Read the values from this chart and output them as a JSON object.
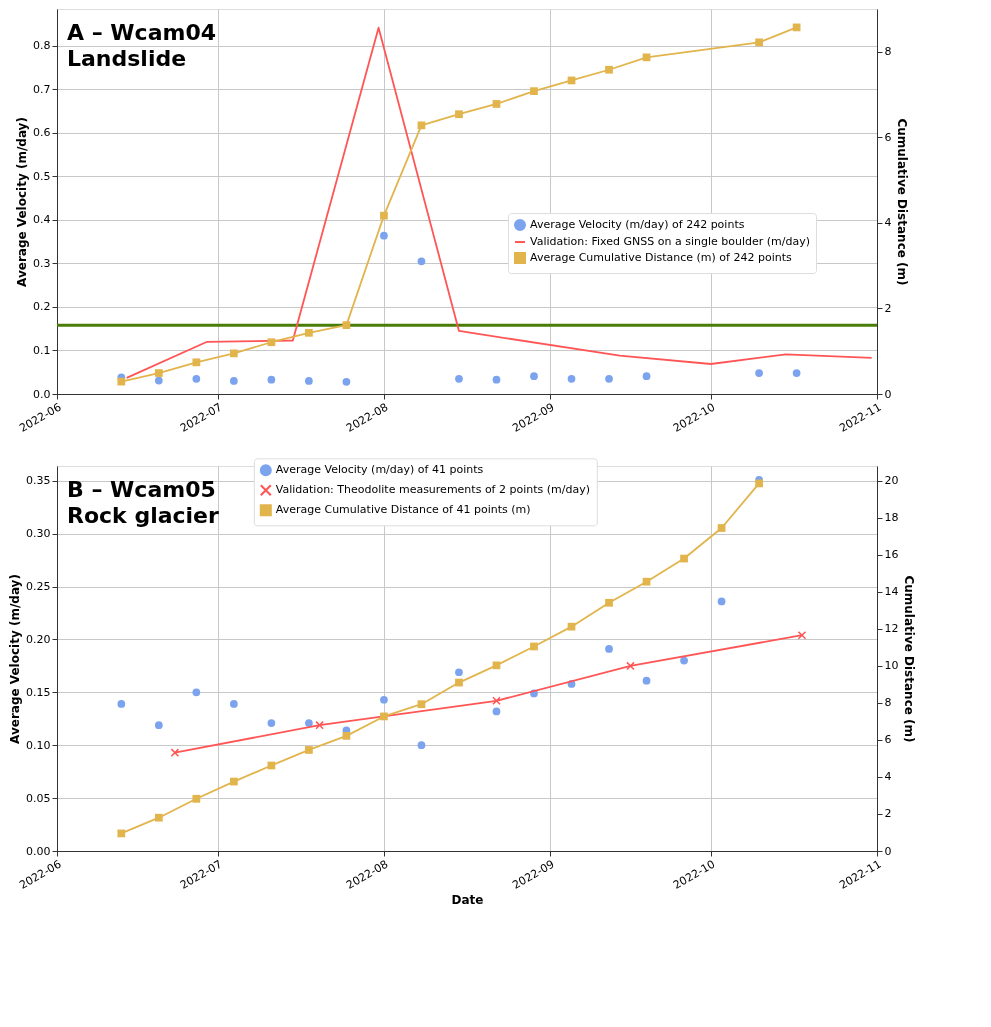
{
  "chart_data": [
    {
      "type": "line",
      "title": "A – Wcam04\nLandslide",
      "ylabel": "Average Velocity (m/day)",
      "y2label": "Cumulative Distance (m)",
      "xlim": [
        "2022-06-01",
        "2022-11-01"
      ],
      "xticks": [
        "2022-06",
        "2022-07",
        "2022-08",
        "2022-09",
        "2022-10",
        "2022-11"
      ],
      "ylim": [
        0,
        0.885
      ],
      "yticks": [
        {
          "value": 0,
          "label": "0.0"
        },
        0.1,
        0.2,
        0.3,
        0.4,
        0.5,
        0.6,
        0.7,
        0.8
      ],
      "y2lim": [
        0,
        9.0
      ],
      "y2ticks": [
        0,
        2,
        4,
        6,
        8
      ],
      "grid": true,
      "legend": "right",
      "ref_lines": [
        {
          "axis": "y",
          "value": 0.158,
          "color": "#4a7c08"
        }
      ],
      "series": [
        {
          "name": "Average Velocity (m/day) of 242 points",
          "type": "scatter",
          "marker": "circle",
          "color": "#7ba3ee",
          "x": [
            "2022-06-13",
            "2022-06-20",
            "2022-06-27",
            "2022-07-04",
            "2022-07-11",
            "2022-07-18",
            "2022-07-25",
            "2022-08-01",
            "2022-08-08",
            "2022-08-15",
            "2022-08-22",
            "2022-08-29",
            "2022-09-05",
            "2022-09-12",
            "2022-09-19",
            "2022-10-10",
            "2022-10-17"
          ],
          "values": [
            0.038,
            0.031,
            0.035,
            0.03,
            0.033,
            0.03,
            0.028,
            0.364,
            0.305,
            0.035,
            0.033,
            0.041,
            0.035,
            0.035,
            0.041,
            0.048,
            0.048
          ]
        },
        {
          "name": "Validation: Fixed GNSS on a single boulder (m/day)",
          "marker": "none",
          "color": "#ff5555",
          "x": [
            "2022-06-14",
            "2022-06-29",
            "2022-07-15",
            "2022-07-31",
            "2022-08-15",
            "2022-09-14",
            "2022-10-01",
            "2022-10-15",
            "2022-10-31"
          ],
          "values": [
            0.037,
            0.12,
            0.123,
            0.842,
            0.145,
            0.088,
            0.069,
            0.091,
            0.083
          ]
        },
        {
          "name": "Average Cumulative Distance (m) of 242 points",
          "marker": "square",
          "axis": "y2",
          "color": "#e2b44c",
          "x": [
            "2022-06-13",
            "2022-06-20",
            "2022-06-27",
            "2022-07-04",
            "2022-07-11",
            "2022-07-18",
            "2022-07-25",
            "2022-08-01",
            "2022-08-08",
            "2022-08-15",
            "2022-08-22",
            "2022-08-29",
            "2022-09-05",
            "2022-09-12",
            "2022-09-19",
            "2022-10-10",
            "2022-10-17"
          ],
          "values": [
            0.29,
            0.49,
            0.74,
            0.95,
            1.21,
            1.43,
            1.61,
            4.17,
            6.28,
            6.54,
            6.78,
            7.08,
            7.33,
            7.58,
            7.87,
            8.22,
            8.57
          ]
        }
      ]
    },
    {
      "type": "line",
      "title": "B – Wcam05\nRock glacier",
      "xlabel": "Date",
      "ylabel": "Average Velocity (m/day)",
      "y2label": "Cumulative Distance (m)",
      "xlim": [
        "2022-06-01",
        "2022-11-01"
      ],
      "xticks": [
        "2022-06",
        "2022-07",
        "2022-08",
        "2022-09",
        "2022-10",
        "2022-11"
      ],
      "ylim": [
        0,
        0.364
      ],
      "yticks": [
        {
          "value": 0,
          "label": "0.00"
        },
        0.05,
        {
          "value": 0.1,
          "label": "0.10"
        },
        0.15,
        {
          "value": 0.2,
          "label": "0.20"
        },
        0.25,
        {
          "value": 0.3,
          "label": "0.30"
        },
        0.35
      ],
      "y2lim": [
        0,
        20.8
      ],
      "y2ticks": [
        0,
        2,
        4,
        6,
        8,
        10,
        12,
        14,
        16,
        18,
        20
      ],
      "grid": true,
      "legend": "top",
      "series": [
        {
          "name": "Average Velocity (m/day) of 41 points",
          "type": "scatter",
          "marker": "circle",
          "color": "#7ba3ee",
          "x": [
            "2022-06-13",
            "2022-06-20",
            "2022-06-27",
            "2022-07-04",
            "2022-07-11",
            "2022-07-18",
            "2022-07-25",
            "2022-08-01",
            "2022-08-08",
            "2022-08-15",
            "2022-08-22",
            "2022-08-29",
            "2022-09-05",
            "2022-09-12",
            "2022-09-19",
            "2022-09-26",
            "2022-10-03",
            "2022-10-10"
          ],
          "values": [
            0.139,
            0.119,
            0.15,
            0.139,
            0.121,
            0.121,
            0.114,
            0.143,
            0.1,
            0.169,
            0.132,
            0.149,
            0.158,
            0.191,
            0.161,
            0.18,
            0.236,
            0.351
          ]
        },
        {
          "name": "Validation: Theodolite measurements of 2 points (m/day)",
          "marker": "cross",
          "color": "#ff5555",
          "x": [
            "2022-06-23",
            "2022-07-20",
            "2022-08-22",
            "2022-09-16",
            "2022-10-18"
          ],
          "values": [
            0.093,
            0.119,
            0.142,
            0.175,
            0.204
          ]
        },
        {
          "name": "Average Cumulative Distance of 41 points (m)",
          "marker": "square",
          "axis": "y2",
          "color": "#e2b44c",
          "x": [
            "2022-06-13",
            "2022-06-20",
            "2022-06-27",
            "2022-07-04",
            "2022-07-11",
            "2022-07-18",
            "2022-07-25",
            "2022-08-01",
            "2022-08-08",
            "2022-08-15",
            "2022-08-22",
            "2022-08-29",
            "2022-09-05",
            "2022-09-12",
            "2022-09-19",
            "2022-09-26",
            "2022-10-03",
            "2022-10-10"
          ],
          "values": [
            0.95,
            1.8,
            2.82,
            3.75,
            4.62,
            5.46,
            6.22,
            7.27,
            7.93,
            9.1,
            10.03,
            11.05,
            12.12,
            13.41,
            14.55,
            15.8,
            17.45,
            19.86
          ]
        }
      ]
    }
  ]
}
